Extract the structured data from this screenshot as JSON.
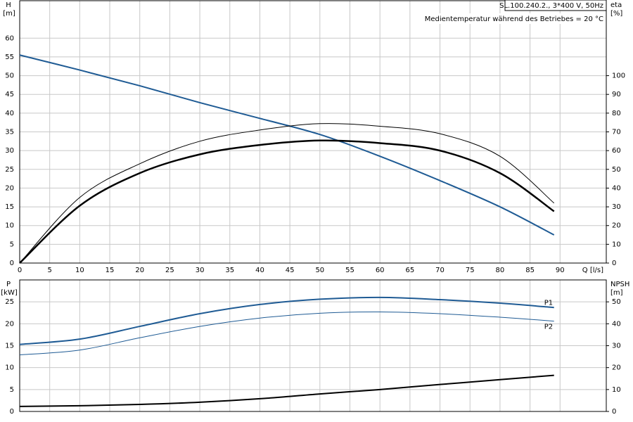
{
  "chart_data": [
    {
      "type": "line",
      "title": "SL.100.240.2., 3*400 V, 50Hz",
      "subtitle": "Medientemperatur während des Betriebes = 20 °C",
      "ylabel": "H",
      "yunit": "[m]",
      "y2label": "eta",
      "y2unit": "[%]",
      "xlabel": "Q [l/s]",
      "x": [
        0,
        10,
        20,
        30,
        40,
        50,
        60,
        70,
        80,
        89
      ],
      "xlim": [
        0,
        97.7
      ],
      "xticks": [
        0,
        5,
        10,
        15,
        20,
        25,
        30,
        35,
        40,
        45,
        50,
        55,
        60,
        65,
        70,
        75,
        80,
        85,
        90
      ],
      "ylim": [
        0,
        70
      ],
      "yticks": [
        0,
        5,
        10,
        15,
        20,
        25,
        30,
        35,
        40,
        45,
        50,
        55,
        60
      ],
      "y2lim": [
        0,
        140
      ],
      "y2ticks": [
        0,
        10,
        20,
        30,
        40,
        50,
        60,
        70,
        80,
        90,
        100
      ],
      "grid": true,
      "series": [
        {
          "color": "#1f5b94",
          "line_width": 2,
          "values": [
            55.5,
            51.5,
            47.3,
            42.8,
            38.6,
            34.3,
            28.5,
            22,
            15,
            7.5
          ]
        },
        {
          "color": "#000000",
          "line_width": 2.5,
          "axis": "y2",
          "values": [
            0,
            30.6,
            48,
            58,
            63,
            65.4,
            64,
            60,
            48,
            27.6
          ]
        },
        {
          "color": "#000000",
          "line_width": 1,
          "axis": "y2",
          "values": [
            0,
            35,
            53,
            65,
            71,
            74.4,
            73,
            69,
            57,
            32
          ]
        }
      ]
    },
    {
      "type": "line",
      "ylabel": "P",
      "yunit": "[kW]",
      "y2label": "NPSH",
      "y2unit": "[m]",
      "x": [
        0,
        10,
        20,
        30,
        40,
        50,
        60,
        70,
        80,
        89
      ],
      "xlim": [
        0,
        97.7
      ],
      "xticks": [
        0,
        5,
        10,
        15,
        20,
        25,
        30,
        35,
        40,
        45,
        50,
        55,
        60,
        65,
        70,
        75,
        80,
        85,
        90
      ],
      "ylim": [
        0,
        30
      ],
      "yticks": [
        0,
        5,
        10,
        15,
        20,
        25
      ],
      "y2lim": [
        0,
        60
      ],
      "y2ticks": [
        0,
        10,
        20,
        30,
        40,
        50
      ],
      "grid": true,
      "series": [
        {
          "name": "P1",
          "color": "#1f5b94",
          "line_width": 2,
          "values": [
            15.3,
            16.5,
            19.4,
            22.3,
            24.4,
            25.6,
            26,
            25.5,
            24.7,
            23.7
          ]
        },
        {
          "name": "P2",
          "color": "#1f5b94",
          "line_width": 1,
          "values": [
            12.9,
            14,
            16.8,
            19.4,
            21.3,
            22.4,
            22.7,
            22.3,
            21.5,
            20.6
          ]
        },
        {
          "color": "#000000",
          "line_width": 2,
          "axis": "y2",
          "values": [
            2.3,
            2.6,
            3.2,
            4.2,
            5.8,
            8,
            10,
            12.3,
            14.5,
            16.5
          ]
        }
      ]
    }
  ]
}
